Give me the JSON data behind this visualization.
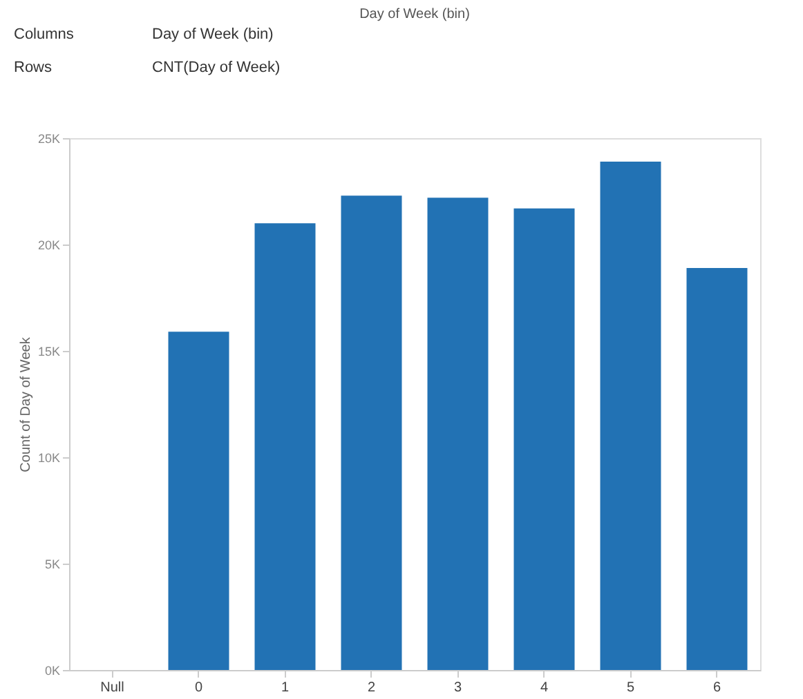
{
  "chart_data": {
    "type": "bar",
    "title": "Day of Week (bin)",
    "ylabel": "Count of Day of Week",
    "categories": [
      "Null",
      "0",
      "1",
      "2",
      "3",
      "4",
      "5",
      "6"
    ],
    "values": [
      null,
      15900,
      21000,
      22300,
      22200,
      21700,
      23900,
      18900
    ],
    "color": "#2272b4",
    "ylim": [
      0,
      25000
    ],
    "yticks": [
      {
        "value": 0,
        "label": "0K"
      },
      {
        "value": 5000,
        "label": "5K"
      },
      {
        "value": 10000,
        "label": "10K"
      },
      {
        "value": 15000,
        "label": "15K"
      },
      {
        "value": 20000,
        "label": "20K"
      },
      {
        "value": 25000,
        "label": "25K"
      }
    ],
    "grid": false,
    "annotations": [
      "Columns",
      "Day of Week (bin)",
      "Rows",
      "CNT(Day of Week)"
    ]
  }
}
